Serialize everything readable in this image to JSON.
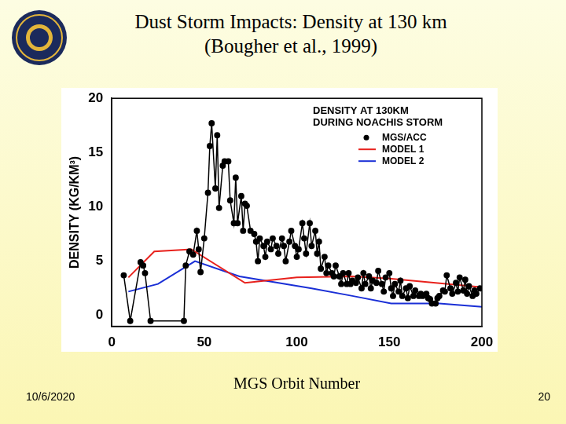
{
  "slide": {
    "title": [
      "Dust Storm Impacts: Density at 130 km",
      "(Bougher et al., 1999)"
    ],
    "date": "10/6/2020",
    "page": "20"
  },
  "chart_data": {
    "type": "line",
    "title": [
      "DENSITY AT 130KM",
      "DURING NOACHIS STORM"
    ],
    "x_label": "MGS Orbit Number",
    "y_label": "DENSITY (KG/KM³)",
    "xlim": [
      0,
      200
    ],
    "xticks": [
      0,
      50,
      100,
      150,
      200
    ],
    "ylim": [
      -1,
      20
    ],
    "yticks": [
      0,
      5,
      10,
      15,
      20
    ],
    "grid": false,
    "legend": "upper right",
    "series": [
      {
        "name": "MGS/ACC",
        "color": "#000000",
        "marker": "circle",
        "line_style": "solid",
        "x": [
          6.5,
          10,
          15.6,
          17,
          18,
          21,
          39,
          40,
          42,
          44,
          46,
          47,
          48,
          50,
          52,
          53,
          54,
          56,
          57,
          58,
          60,
          61,
          63,
          64,
          66,
          67,
          68,
          70,
          71,
          72,
          73,
          75,
          77,
          78,
          79,
          80,
          82,
          83,
          84,
          86,
          87,
          89,
          90,
          92,
          93,
          94,
          96,
          97,
          99,
          100,
          101,
          103,
          104,
          105,
          107,
          108,
          110,
          111,
          112,
          113,
          115,
          116,
          117,
          119,
          120,
          121,
          123,
          124,
          125,
          127,
          128,
          129,
          130,
          132,
          133,
          135,
          136,
          137,
          139,
          140,
          141,
          143,
          144,
          146,
          147,
          148,
          150,
          151,
          152,
          153,
          155,
          156,
          157,
          159,
          160,
          161,
          163,
          164,
          166,
          167,
          168,
          170,
          171,
          172,
          173,
          175,
          176,
          177,
          179,
          180,
          181,
          183,
          184,
          186,
          187,
          188,
          190,
          191,
          192,
          193,
          195,
          196,
          197,
          199
        ],
        "values": [
          3.7,
          -0.5,
          4.9,
          4.6,
          3.9,
          -0.5,
          -0.5,
          4.6,
          5.9,
          5.6,
          7.8,
          6.1,
          4.0,
          7.1,
          11.3,
          15.6,
          17.7,
          11.7,
          16.6,
          9.9,
          13.8,
          14.2,
          14.2,
          10.6,
          8.5,
          12.7,
          8.5,
          11.0,
          7.8,
          10.3,
          10.1,
          7.8,
          7.5,
          6.8,
          5.0,
          7.1,
          6.4,
          5.4,
          6.8,
          6.1,
          7.1,
          6.4,
          5.7,
          7.1,
          6.4,
          5.0,
          6.8,
          7.8,
          6.4,
          5.4,
          6.1,
          8.5,
          7.1,
          5.7,
          8.5,
          6.4,
          7.8,
          5.7,
          6.8,
          4.3,
          5.4,
          3.9,
          4.6,
          3.9,
          3.6,
          4.6,
          3.6,
          2.9,
          3.9,
          2.9,
          3.9,
          2.9,
          3.2,
          3.0,
          3.5,
          2.5,
          3.9,
          2.9,
          3.6,
          2.5,
          3.2,
          3.0,
          4.1,
          2.9,
          2.2,
          3.5,
          3.9,
          2.5,
          1.8,
          2.9,
          2.2,
          3.2,
          1.8,
          2.5,
          1.6,
          2.7,
          1.8,
          2.3,
          1.8,
          2.0,
          1.8,
          2.0,
          1.6,
          1.5,
          1.1,
          1.1,
          1.6,
          1.8,
          2.3,
          2.2,
          3.7,
          2.5,
          2.0,
          3.0,
          2.2,
          3.5,
          2.3,
          3.3,
          2.0,
          2.7,
          1.8,
          2.3,
          2.0,
          2.5
        ]
      },
      {
        "name": "MODEL 1",
        "color": "#e8211c",
        "marker": "none",
        "line_style": "solid",
        "x": [
          9,
          23,
          43,
          72,
          100,
          130,
          150,
          200
        ],
        "values": [
          3.5,
          5.9,
          6.1,
          3.0,
          3.5,
          3.6,
          3.4,
          2.6
        ]
      },
      {
        "name": "MODEL 2",
        "color": "#1a2fd6",
        "marker": "none",
        "line_style": "solid",
        "x": [
          9,
          25,
          45,
          69,
          108,
          130,
          151,
          177,
          200
        ],
        "values": [
          2.2,
          2.9,
          5.0,
          3.6,
          2.5,
          1.8,
          1.1,
          1.1,
          0.8
        ]
      }
    ]
  }
}
